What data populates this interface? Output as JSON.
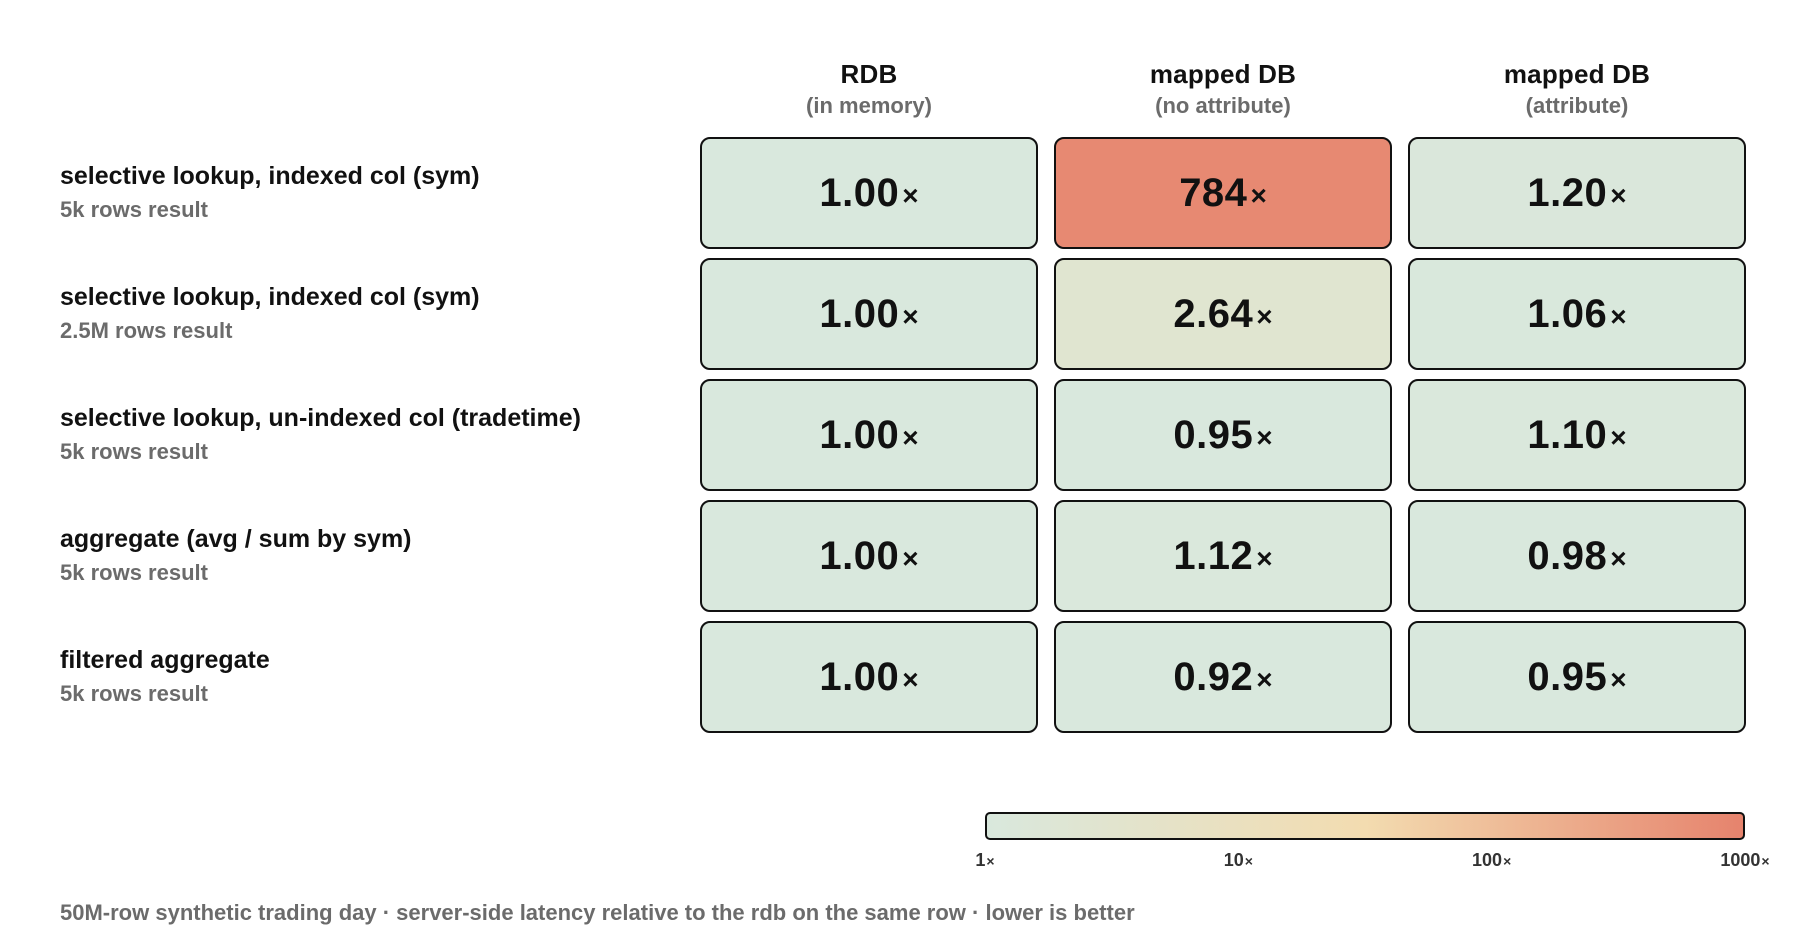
{
  "chart_data": {
    "type": "heatmap",
    "columns": [
      {
        "title": "RDB",
        "subtitle": "(in memory)"
      },
      {
        "title": "mapped DB",
        "subtitle": "(no attribute)"
      },
      {
        "title": "mapped DB",
        "subtitle": "(attribute)"
      }
    ],
    "rows": [
      {
        "title": "selective lookup, indexed col (sym)",
        "subtitle": "5k rows result",
        "values": [
          "1.00",
          "784",
          "1.20"
        ]
      },
      {
        "title": "selective lookup, indexed col (sym)",
        "subtitle": "2.5M rows result",
        "values": [
          "1.00",
          "2.64",
          "1.06"
        ]
      },
      {
        "title": "selective lookup, un-indexed col (tradetime)",
        "subtitle": "5k rows result",
        "values": [
          "1.00",
          "0.95",
          "1.10"
        ]
      },
      {
        "title": "aggregate (avg / sum by sym)",
        "subtitle": "5k rows result",
        "values": [
          "1.00",
          "1.12",
          "0.98"
        ]
      },
      {
        "title": "filtered aggregate",
        "subtitle": "5k rows result",
        "values": [
          "1.00",
          "0.92",
          "0.95"
        ]
      }
    ],
    "value_suffix": "×",
    "scale": {
      "type": "log",
      "range": [
        1,
        1000
      ],
      "ticks": [
        {
          "value": 1,
          "label": "1"
        },
        {
          "value": 10,
          "label": "10"
        },
        {
          "value": 100,
          "label": "100"
        },
        {
          "value": 1000,
          "label": "1000"
        }
      ],
      "colors": {
        "low": "#d9e8dd",
        "mid": "#f3dcb0",
        "high": "#e6836d"
      }
    },
    "footnote": "50M-row synthetic trading day · server-side latency relative to the rdb on the same row · lower is better"
  }
}
